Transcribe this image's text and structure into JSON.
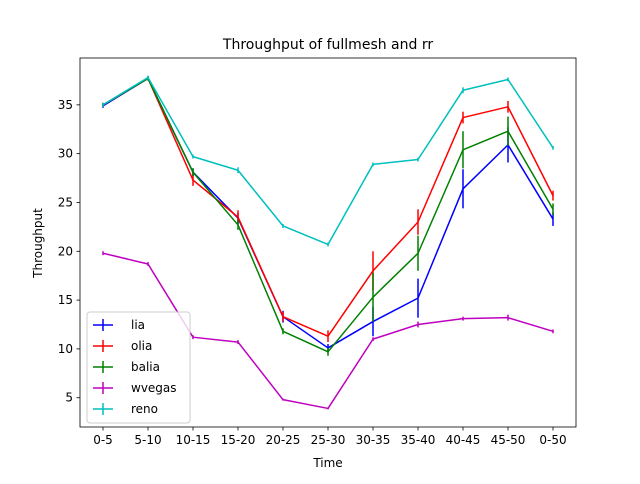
{
  "chart_data": {
    "type": "line",
    "title": "Throughput of fullmesh and rr",
    "xlabel": "Time",
    "ylabel": "Throughput",
    "categories": [
      "0-5",
      "5-10",
      "10-15",
      "15-20",
      "20-25",
      "25-30",
      "30-35",
      "35-40",
      "40-45",
      "45-50",
      "0-50"
    ],
    "ylim": [
      2.0,
      39.8
    ],
    "yticks": [
      5,
      10,
      15,
      20,
      25,
      30,
      35
    ],
    "grid": false,
    "legend_position": "lower-left",
    "series": [
      {
        "name": "lia",
        "color": "#0000ff",
        "values": [
          34.9,
          37.7,
          28.1,
          23.4,
          13.3,
          10.1,
          12.8,
          15.2,
          26.4,
          30.9,
          23.3
        ],
        "errors": [
          0.2,
          0.2,
          0.4,
          0.5,
          0.6,
          0.4,
          1.5,
          2.0,
          2.0,
          1.8,
          0.7
        ]
      },
      {
        "name": "olia",
        "color": "#ff0000",
        "values": [
          35.0,
          37.7,
          27.3,
          23.5,
          13.3,
          11.3,
          18.0,
          23.0,
          33.7,
          34.8,
          25.7
        ],
        "errors": [
          0.2,
          0.2,
          0.6,
          0.7,
          0.5,
          0.6,
          2.0,
          1.3,
          0.6,
          0.6,
          0.5
        ]
      },
      {
        "name": "balia",
        "color": "#008000",
        "values": [
          35.0,
          37.7,
          28.1,
          22.7,
          11.8,
          9.7,
          15.3,
          19.8,
          30.4,
          32.3,
          24.3
        ],
        "errors": [
          0.2,
          0.2,
          0.4,
          0.5,
          0.3,
          0.4,
          2.5,
          1.8,
          1.9,
          1.5,
          0.6
        ]
      },
      {
        "name": "wvegas",
        "color": "#bf00bf",
        "values": [
          19.8,
          18.7,
          11.2,
          10.7,
          4.8,
          3.9,
          11.0,
          12.5,
          13.1,
          13.2,
          11.8
        ],
        "errors": [
          0.2,
          0.2,
          0.2,
          0.2,
          0.1,
          0.1,
          0.2,
          0.3,
          0.2,
          0.3,
          0.2
        ]
      },
      {
        "name": "reno",
        "color": "#00bfbf",
        "values": [
          35.0,
          37.8,
          29.7,
          28.3,
          22.6,
          20.7,
          28.9,
          29.4,
          36.5,
          37.6,
          30.6
        ],
        "errors": [
          0.2,
          0.2,
          0.2,
          0.3,
          0.2,
          0.2,
          0.2,
          0.2,
          0.3,
          0.2,
          0.2
        ]
      }
    ]
  }
}
